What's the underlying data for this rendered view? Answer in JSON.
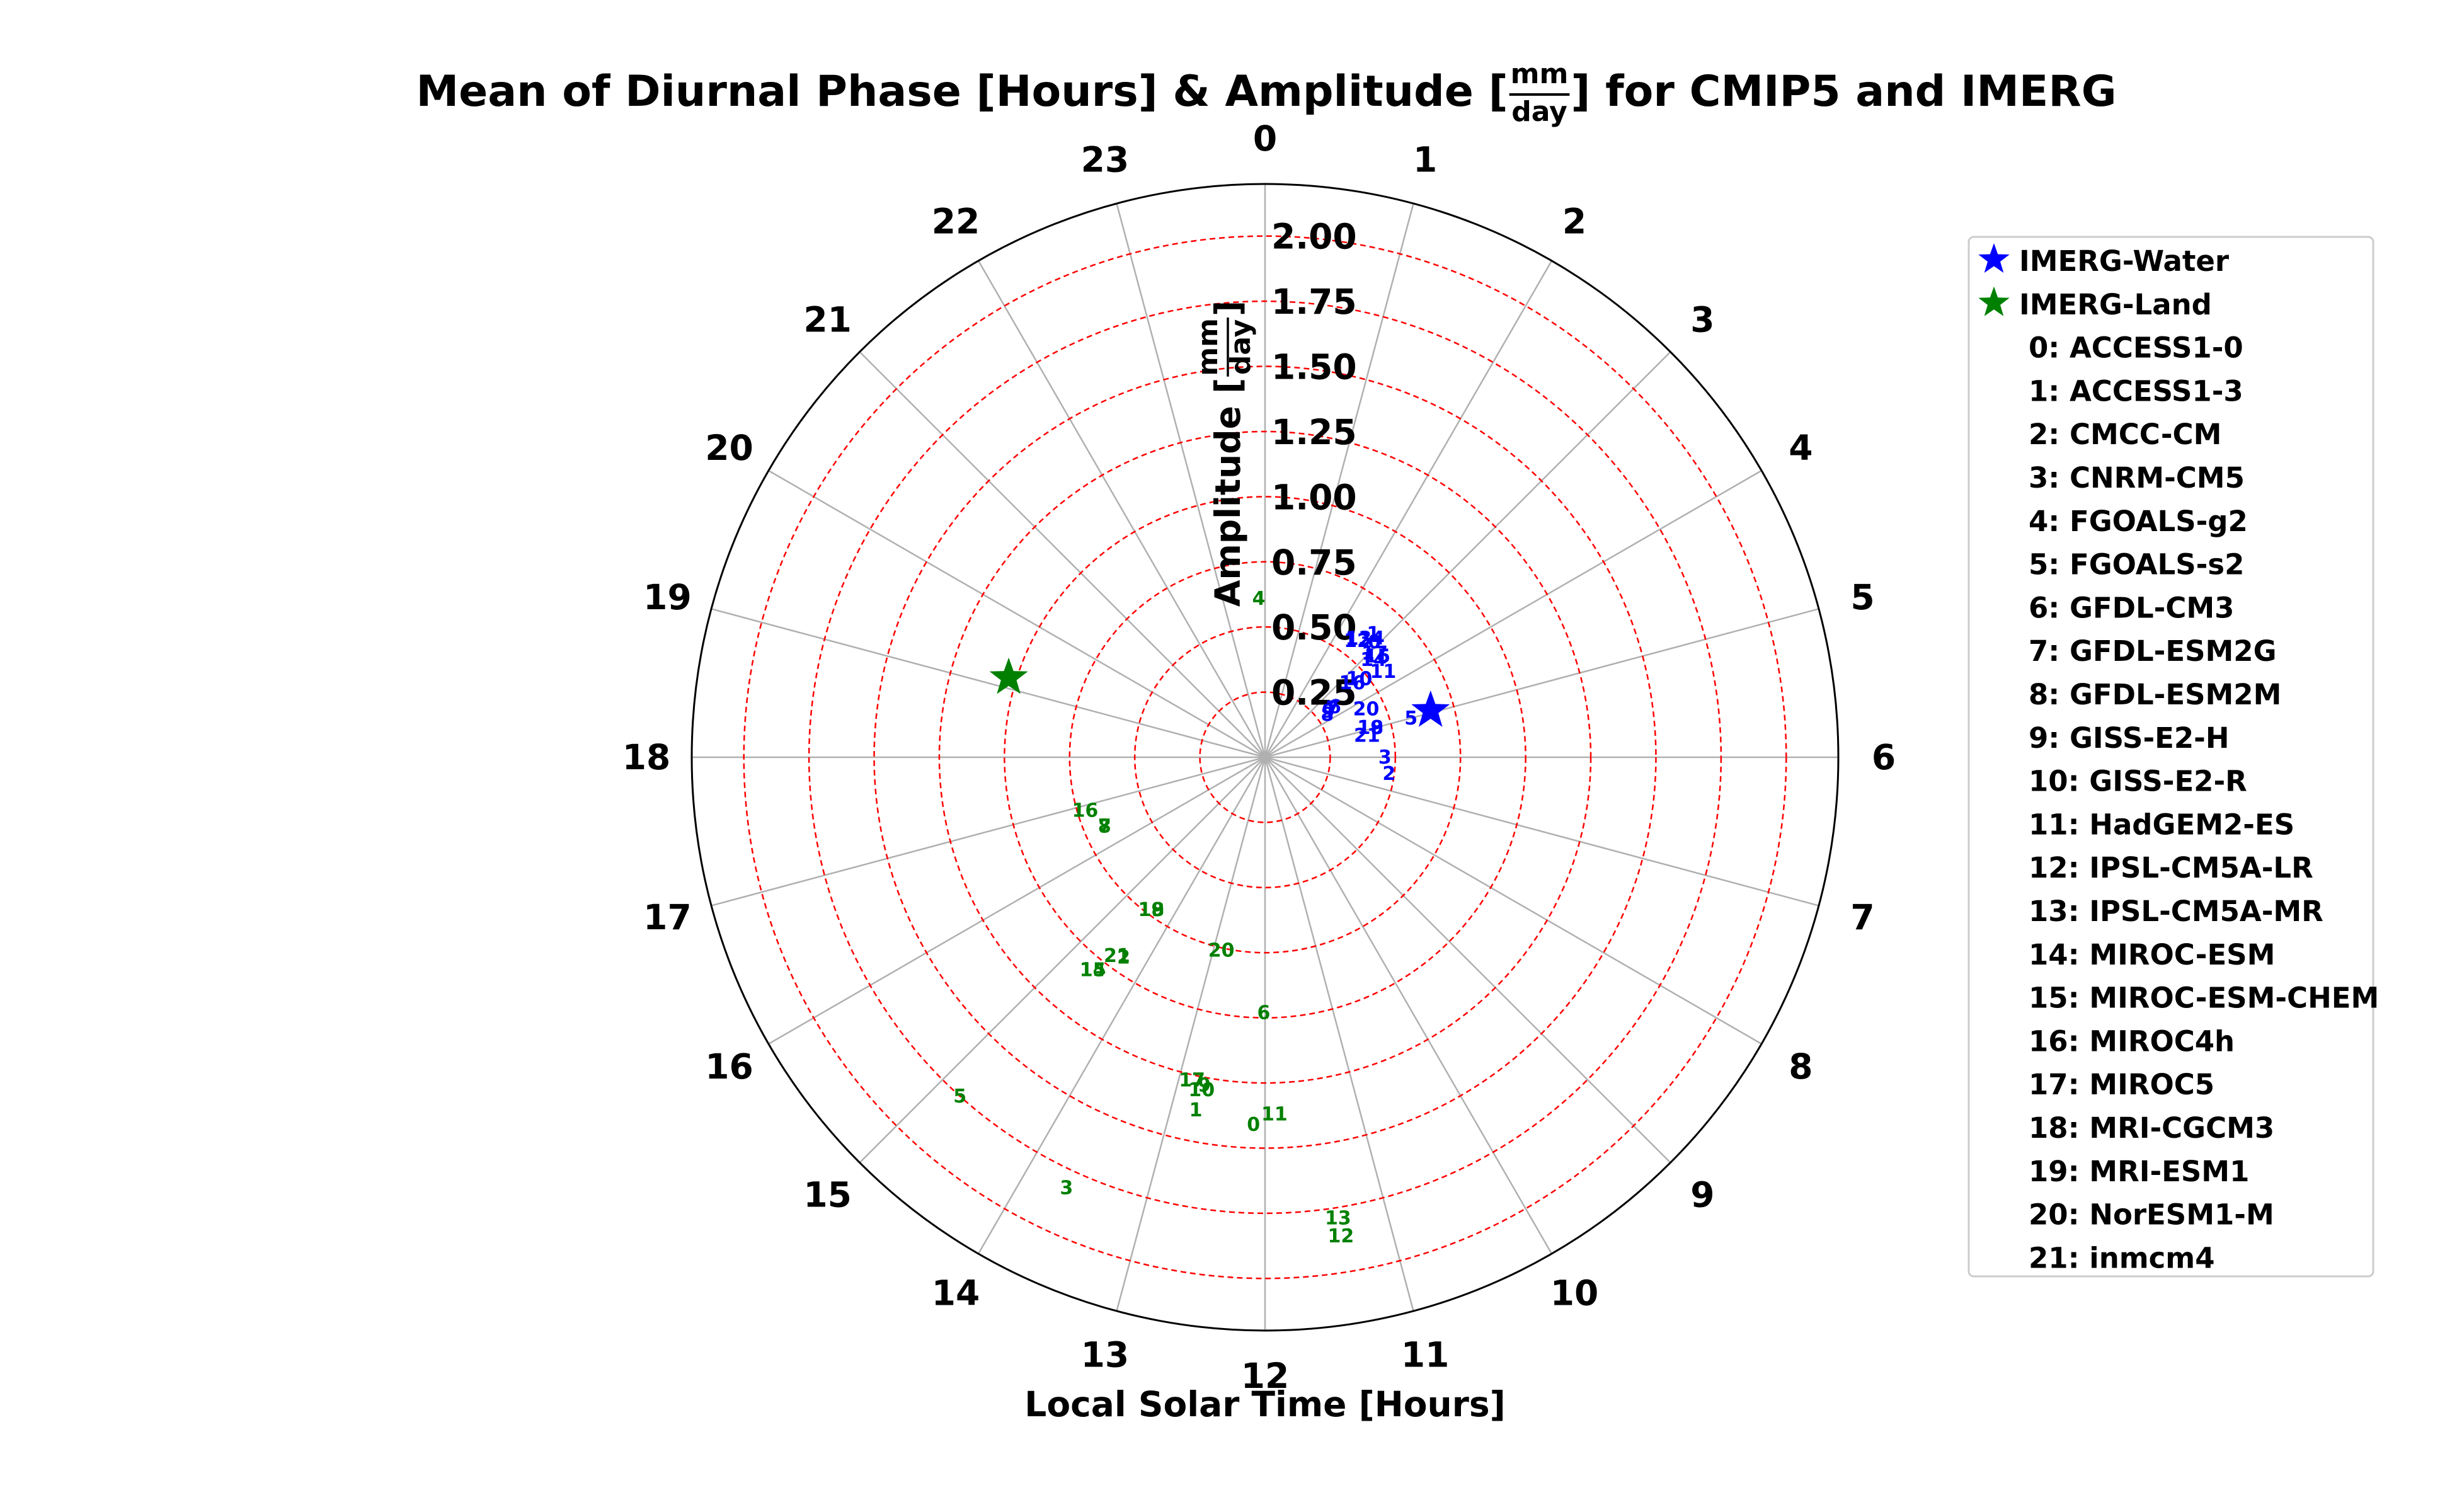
{
  "chart_data": {
    "type": "scatter",
    "projection": "polar",
    "title": {
      "prefix": "Mean of Diurnal Phase [Hours] & Amplitude [",
      "unit_num": "mm",
      "unit_den": "day",
      "suffix": "] for CMIP5 and IMERG"
    },
    "xlabel": "Local Solar Time [Hours]",
    "ylabel": {
      "prefix": "Amplitude [",
      "unit_num": "mm",
      "unit_den": "day",
      "suffix": "]"
    },
    "theta_ticks": [
      "0",
      "1",
      "2",
      "3",
      "4",
      "5",
      "6",
      "7",
      "8",
      "9",
      "10",
      "11",
      "12",
      "13",
      "14",
      "15",
      "16",
      "17",
      "18",
      "19",
      "20",
      "21",
      "22",
      "23"
    ],
    "theta_direction": "clockwise",
    "theta_zero": "top",
    "r_ticks": [
      "0.25",
      "0.50",
      "0.75",
      "1.00",
      "1.25",
      "1.50",
      "1.75",
      "2.00"
    ],
    "r_tick_values": [
      0.25,
      0.5,
      0.75,
      1.0,
      1.25,
      1.5,
      1.75,
      2.0
    ],
    "rlim": [
      0,
      2.2
    ],
    "grid": true,
    "legend_position": "right",
    "colors": {
      "water": "#0000ff",
      "land": "#008000",
      "rgrid": "#ff0000",
      "tgrid": "#b0b0b0"
    },
    "markers": [
      {
        "name": "IMERG-Water",
        "hour": 4.95,
        "amp": 0.66,
        "color": "#0000ff",
        "symbol": "star"
      },
      {
        "name": "IMERG-Land",
        "hour": 19.15,
        "amp": 1.03,
        "color": "#008000",
        "symbol": "star"
      }
    ],
    "models": [
      "ACCESS1-0",
      "ACCESS1-3",
      "CMCC-CM",
      "CNRM-CM5",
      "FGOALS-g2",
      "FGOALS-s2",
      "GFDL-CM3",
      "GFDL-ESM2G",
      "GFDL-ESM2M",
      "GISS-E2-H",
      "GISS-E2-R",
      "HadGEM2-ES",
      "IPSL-CM5A-LR",
      "IPSL-CM5A-MR",
      "MIROC-ESM",
      "MIROC-ESM-CHEM",
      "MIROC4h",
      "MIROC5",
      "MRI-CGCM3",
      "MRI-ESM1",
      "NorESM1-M",
      "inmcm4"
    ],
    "water_points": [
      {
        "label": "0",
        "hour": 2.9,
        "amp": 0.61
      },
      {
        "label": "1",
        "hour": 2.75,
        "amp": 0.63
      },
      {
        "label": "2",
        "hour": 6.5,
        "amp": 0.48
      },
      {
        "label": "3",
        "hour": 6.0,
        "amp": 0.46
      },
      {
        "label": "4",
        "hour": 2.9,
        "amp": 0.63
      },
      {
        "label": "5",
        "hour": 5.0,
        "amp": 0.58
      },
      {
        "label": "6",
        "hour": 3.6,
        "amp": 0.33
      },
      {
        "label": "7",
        "hour": 3.6,
        "amp": 0.32
      },
      {
        "label": "8",
        "hour": 3.7,
        "amp": 0.29
      },
      {
        "label": "9",
        "hour": 3.6,
        "amp": 0.3
      },
      {
        "label": "10",
        "hour": 3.35,
        "amp": 0.47
      },
      {
        "label": "11",
        "hour": 3.6,
        "amp": 0.56
      },
      {
        "label": "12",
        "hour": 2.55,
        "amp": 0.57
      },
      {
        "label": "13",
        "hour": 2.55,
        "amp": 0.58
      },
      {
        "label": "14",
        "hour": 3.2,
        "amp": 0.56
      },
      {
        "label": "15",
        "hour": 3.2,
        "amp": 0.58
      },
      {
        "label": "16",
        "hour": 3.3,
        "amp": 0.44
      },
      {
        "label": "17",
        "hour": 3.1,
        "amp": 0.58
      },
      {
        "label": "18",
        "hour": 4.95,
        "amp": 0.42
      },
      {
        "label": "19",
        "hour": 4.95,
        "amp": 0.42
      },
      {
        "label": "20",
        "hour": 4.3,
        "amp": 0.43
      },
      {
        "label": "21",
        "hour": 5.2,
        "amp": 0.4
      }
    ],
    "land_points": [
      {
        "label": "0",
        "hour": 12.12,
        "amp": 1.41
      },
      {
        "label": "1",
        "hour": 12.74,
        "amp": 1.38
      },
      {
        "label": "2",
        "hour": 14.35,
        "amp": 0.94
      },
      {
        "label": "3",
        "hour": 13.65,
        "amp": 1.82
      },
      {
        "label": "4",
        "hour": 23.85,
        "amp": 0.61
      },
      {
        "label": "5",
        "hour": 14.8,
        "amp": 1.75
      },
      {
        "label": "6",
        "hour": 12.02,
        "amp": 0.98
      },
      {
        "label": "7",
        "hour": 16.45,
        "amp": 0.67
      },
      {
        "label": "8",
        "hour": 16.45,
        "amp": 0.67
      },
      {
        "label": "9",
        "hour": 12.7,
        "amp": 1.28
      },
      {
        "label": "10",
        "hour": 12.72,
        "amp": 1.3
      },
      {
        "label": "11",
        "hour": 11.9,
        "amp": 1.37
      },
      {
        "label": "12",
        "hour": 11.4,
        "amp": 1.86
      },
      {
        "label": "13",
        "hour": 11.4,
        "amp": 1.79
      },
      {
        "label": "14",
        "hour": 14.6,
        "amp": 1.05
      },
      {
        "label": "15",
        "hour": 14.6,
        "amp": 1.05
      },
      {
        "label": "16",
        "hour": 16.9,
        "amp": 0.72
      },
      {
        "label": "17",
        "hour": 12.85,
        "amp": 1.27
      },
      {
        "label": "18",
        "hour": 14.45,
        "amp": 0.73
      },
      {
        "label": "19",
        "hour": 14.45,
        "amp": 0.73
      },
      {
        "label": "20",
        "hour": 12.85,
        "amp": 0.76
      },
      {
        "label": "21",
        "hour": 14.45,
        "amp": 0.95
      }
    ]
  }
}
